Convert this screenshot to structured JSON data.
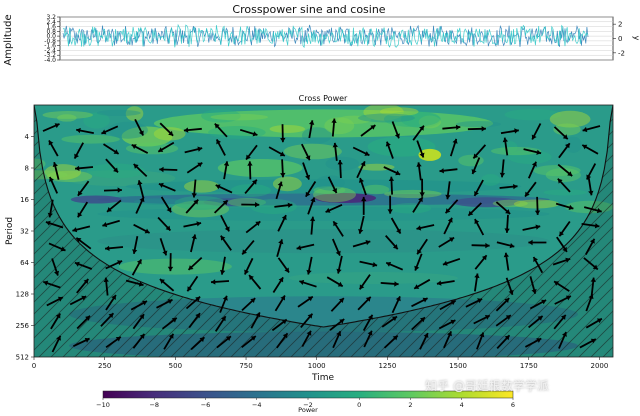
{
  "chart_data": [
    {
      "type": "line",
      "title": "Crosspower sine and cosine",
      "ylabel": "Amplitude",
      "y2label": "y",
      "xlim": [
        0,
        2048
      ],
      "ylim": [
        -4.0,
        3.2
      ],
      "y_ticks": [
        "3.2",
        "2.4",
        "1.6",
        "0.8",
        "0.0",
        "-0.8",
        "-1.6",
        "-2.4",
        "-3.2",
        "-4.0"
      ],
      "y2lim": [
        -3,
        3
      ],
      "y2_ticks": [
        "2",
        "0",
        "-2"
      ],
      "series": [
        {
          "color": "#1f77b4",
          "amplitude": 1.0
        },
        {
          "color": "#2ec8c8",
          "amplitude": 1.0
        }
      ]
    },
    {
      "type": "heatmap",
      "title": "Cross Power",
      "xlabel": "Time",
      "ylabel": "Period",
      "xlim": [
        0,
        2048
      ],
      "x_ticks": [
        "0",
        "250",
        "500",
        "750",
        "1000",
        "1250",
        "1500",
        "1750",
        "2000"
      ],
      "y_scale": "log2",
      "y_ticks": [
        "4",
        "8",
        "16",
        "32",
        "64",
        "128",
        "256",
        "512"
      ],
      "ylim": [
        2,
        512
      ],
      "cone_of_influence_min_period": 270,
      "high_power_band_period": 16,
      "colorbar": {
        "label": "Power",
        "ticks": [
          "−10",
          "−8",
          "−6",
          "−4",
          "−2",
          "0",
          "2",
          "4",
          "6"
        ],
        "range": [
          -10,
          6
        ],
        "colors": [
          "#440154",
          "#472d7b",
          "#3b528b",
          "#2c728e",
          "#21918c",
          "#28ae80",
          "#5ec962",
          "#addc30",
          "#fde725"
        ]
      }
    }
  ],
  "watermark": "知乎 @哥廷根数学学派"
}
